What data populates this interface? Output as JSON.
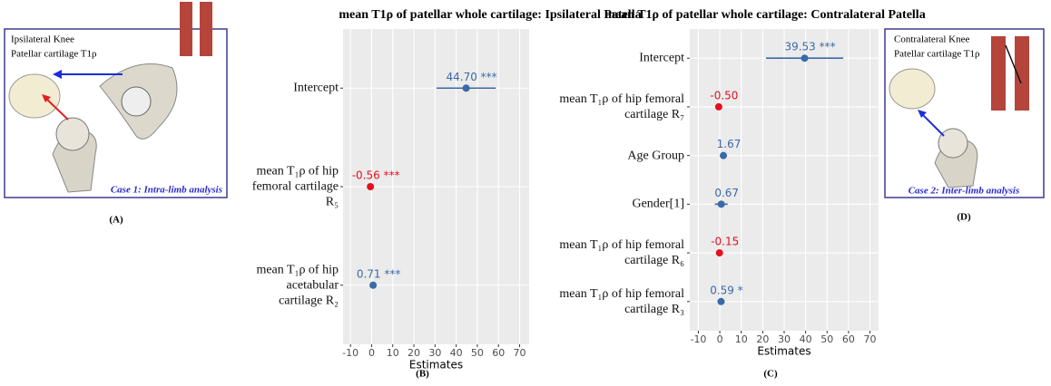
{
  "panels": [
    {
      "lines": [
        "Ipsilateral Knee",
        "Patellar cartilage T1ρ"
      ],
      "caption": "Case 1: Intra-limb analysis",
      "label": "(A)"
    },
    {
      "lines": [
        "Contralateral Knee",
        "Patellar cartilage T1ρ"
      ],
      "caption": "Case 2: Inter-limb analysis",
      "label": "(D)"
    }
  ],
  "chart_data": [
    {
      "type": "forest",
      "title": "mean T1ρ of patellar whole cartilage: Ipsilateral Patella",
      "categories": [
        "Intercept",
        "mean T₁ρ of hip femoral cartilage R₅",
        "mean T₁ρ of hip acetabular cartilage R₂"
      ],
      "values": [
        44.7,
        -0.56,
        0.71
      ],
      "value_labels": [
        "44.70 ***",
        "-0.56 ***",
        "0.71 ***"
      ],
      "errors": [
        14,
        0.4,
        0.4
      ],
      "colors": [
        "#3a6aa8",
        "#e3101e",
        "#3a6aa8"
      ],
      "xlim": [
        -13.5,
        74.5
      ],
      "xticks": [
        -10,
        0,
        10,
        20,
        30,
        40,
        50,
        60,
        70
      ],
      "xlabel": "Estimates",
      "panel_label": "(B)",
      "grid": true
    },
    {
      "type": "forest",
      "title": "mean T1ρ of patellar whole cartilage: Contralateral Patella",
      "categories": [
        "Intercept",
        "mean T₁ρ of hip femoral cartilage R₇",
        "Age Group",
        "Gender[1]",
        "mean T₁ρ of hip femoral cartilage R₆",
        "mean T₁ρ of hip femoral cartilage R₃"
      ],
      "values": [
        39.53,
        -0.5,
        1.67,
        0.67,
        -0.15,
        0.59
      ],
      "value_labels": [
        "39.53 ***",
        "-0.50",
        "1.67",
        "0.67",
        "-0.15",
        "0.59 *"
      ],
      "errors": [
        18,
        0.5,
        1,
        3,
        0.5,
        1
      ],
      "colors": [
        "#3a6aa8",
        "#e3101e",
        "#3a6aa8",
        "#3a6aa8",
        "#e3101e",
        "#3a6aa8"
      ],
      "xlim": [
        -14,
        74
      ],
      "xticks": [
        -10,
        0,
        10,
        20,
        30,
        40,
        50,
        60,
        70
      ],
      "xlabel": "Estimates",
      "panel_label": "(C)",
      "grid": true
    }
  ]
}
